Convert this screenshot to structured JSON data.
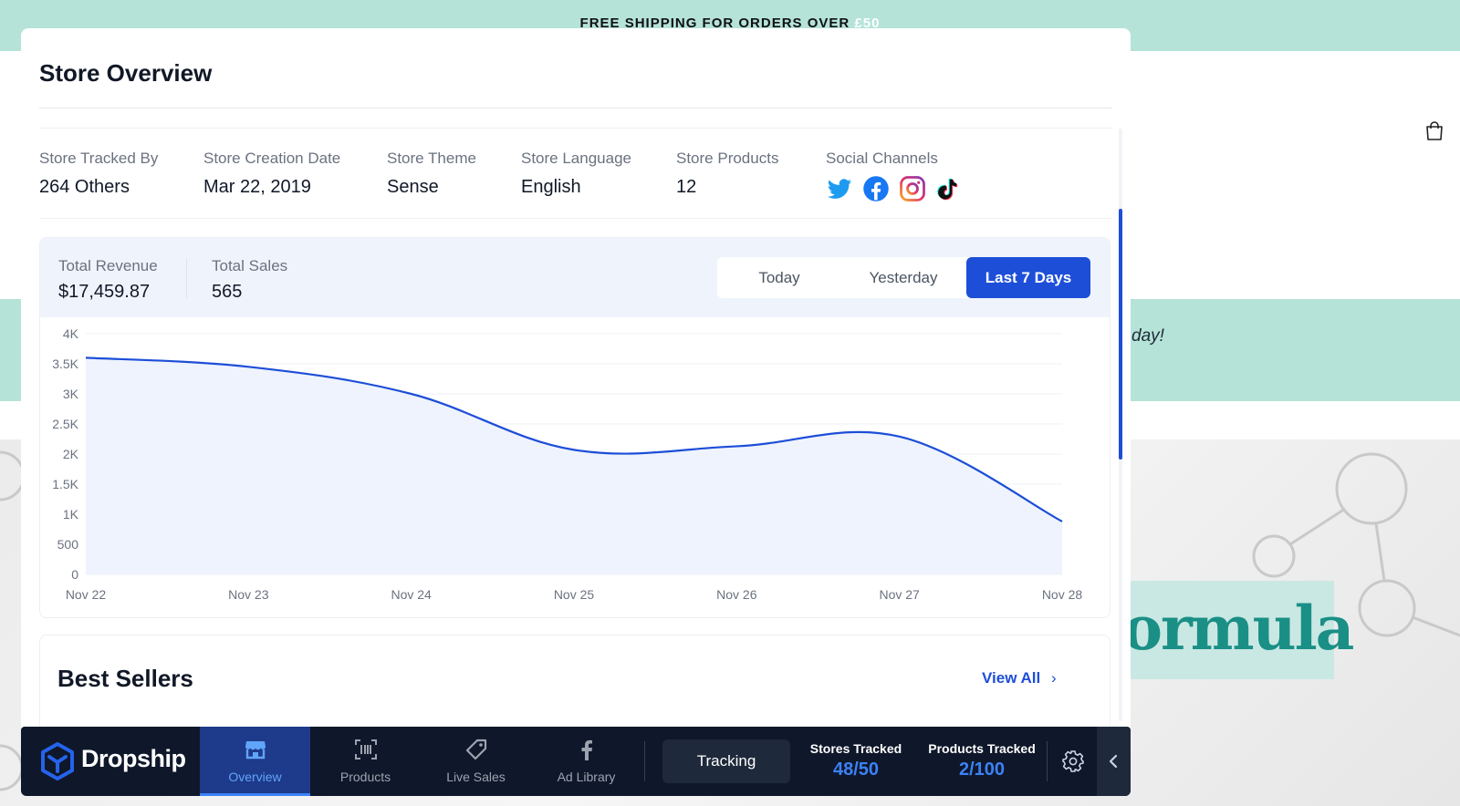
{
  "background": {
    "banner_text": "FREE SHIPPING FOR ORDERS OVER",
    "banner_accent": "£50",
    "band_text": "day!",
    "hero_text": "ormula"
  },
  "overview": {
    "title": "Store Overview",
    "info": [
      {
        "label": "Store Tracked By",
        "value": "264 Others"
      },
      {
        "label": "Store Creation Date",
        "value": "Mar 22, 2019"
      },
      {
        "label": "Store Theme",
        "value": "Sense"
      },
      {
        "label": "Store Language",
        "value": "English"
      },
      {
        "label": "Store Products",
        "value": "12"
      }
    ],
    "social_label": "Social Channels",
    "social_icons": [
      "twitter-icon",
      "facebook-icon",
      "instagram-icon",
      "tiktok-icon"
    ]
  },
  "stats": {
    "total_revenue_label": "Total Revenue",
    "total_revenue_value": "$17,459.87",
    "total_sales_label": "Total Sales",
    "total_sales_value": "565",
    "ranges": [
      "Today",
      "Yesterday",
      "Last 7 Days"
    ],
    "active_range": "Last 7 Days"
  },
  "chart_data": {
    "type": "area",
    "x": [
      "Nov 22",
      "Nov 23",
      "Nov 24",
      "Nov 25",
      "Nov 26",
      "Nov 27",
      "Nov 28"
    ],
    "values": [
      3600,
      3450,
      3000,
      2070,
      2130,
      2290,
      880
    ],
    "yticks": [
      "0",
      "500",
      "1K",
      "1.5K",
      "2K",
      "2.5K",
      "3K",
      "3.5K",
      "4K"
    ],
    "ylim": [
      0,
      4000
    ],
    "line_color": "#1d4ed8",
    "fill_color": "#eef3fd",
    "grid": true
  },
  "best_sellers": {
    "title": "Best Sellers",
    "view_all": "View All",
    "chevron": "›"
  },
  "toolbar": {
    "brand": "Dropship",
    "tabs": [
      {
        "label": "Overview",
        "icon": "store-icon",
        "active": true
      },
      {
        "label": "Products",
        "icon": "barcode-scan-icon",
        "active": false
      },
      {
        "label": "Live Sales",
        "icon": "tag-icon",
        "active": false
      },
      {
        "label": "Ad Library",
        "icon": "facebook-icon",
        "active": false
      }
    ],
    "tracking_button": "Tracking",
    "stores_tracked_label": "Stores Tracked",
    "stores_tracked_value": "48/50",
    "products_tracked_label": "Products Tracked",
    "products_tracked_value": "2/100",
    "accent": "#1d4ed8"
  }
}
